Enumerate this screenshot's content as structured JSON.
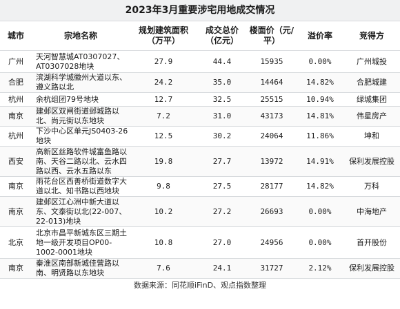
{
  "title": "2023年3月重要涉宅用地成交情况",
  "columns": [
    "城市",
    "宗地名称",
    "规划建筑面积（万平）",
    "成交总价（亿元）",
    "楼面价（元/平）",
    "溢价率",
    "竞得方"
  ],
  "rows": [
    {
      "city": "广州",
      "parcel": "天河智慧城AT0307027、AT0307028地块",
      "area": "27.9",
      "price": "44.4",
      "floor": "15935",
      "premium": "0.00%",
      "buyer": "广州城投"
    },
    {
      "city": "合肥",
      "parcel": "滨湖科学城徽州大道以东、遵义路以北",
      "area": "24.2",
      "price": "35.0",
      "floor": "14464",
      "premium": "14.82%",
      "buyer": "合肥城建"
    },
    {
      "city": "杭州",
      "parcel": "余杭组团79号地块",
      "area": "12.7",
      "price": "32.5",
      "floor": "25515",
      "premium": "10.94%",
      "buyer": "绿城集团"
    },
    {
      "city": "南京",
      "parcel": "建邺区双闸街道邺城路以北、尚元街以东地块",
      "area": "7.2",
      "price": "31.0",
      "floor": "43173",
      "premium": "14.81%",
      "buyer": "伟星房产"
    },
    {
      "city": "杭州",
      "parcel": "下沙中心区单元JS0403-26地块",
      "area": "12.5",
      "price": "30.2",
      "floor": "24064",
      "premium": "11.86%",
      "buyer": "坤和"
    },
    {
      "city": "西安",
      "parcel": "高新区丝路软件城富鱼路以南、天谷二路以北、云水四路以西、云水五路以东",
      "area": "19.8",
      "price": "27.7",
      "floor": "13972",
      "premium": "14.91%",
      "buyer": "保利发展控股"
    },
    {
      "city": "南京",
      "parcel": "雨花台区西善桥街道数字大道以北、知书路以西地块",
      "area": "9.8",
      "price": "27.5",
      "floor": "28177",
      "premium": "14.82%",
      "buyer": "万科"
    },
    {
      "city": "南京",
      "parcel": "建邺区江心洲中新大道以东、文泰街以北(22-007、22-013)地块",
      "area": "10.2",
      "price": "27.2",
      "floor": "26693",
      "premium": "0.00%",
      "buyer": "中海地产"
    },
    {
      "city": "北京",
      "parcel": "北京市昌平新城东区三期土地一级开发项目OP00-1002-0001地块",
      "area": "10.8",
      "price": "27.0",
      "floor": "24956",
      "premium": "0.00%",
      "buyer": "首开股份"
    },
    {
      "city": "南京",
      "parcel": "秦淮区南部新城佳营路以南、明贤路以东地块",
      "area": "7.6",
      "price": "24.1",
      "floor": "31727",
      "premium": "2.12%",
      "buyer": "保利发展控股"
    }
  ],
  "footer": "数据来源：同花顺iFinD、观点指数整理"
}
